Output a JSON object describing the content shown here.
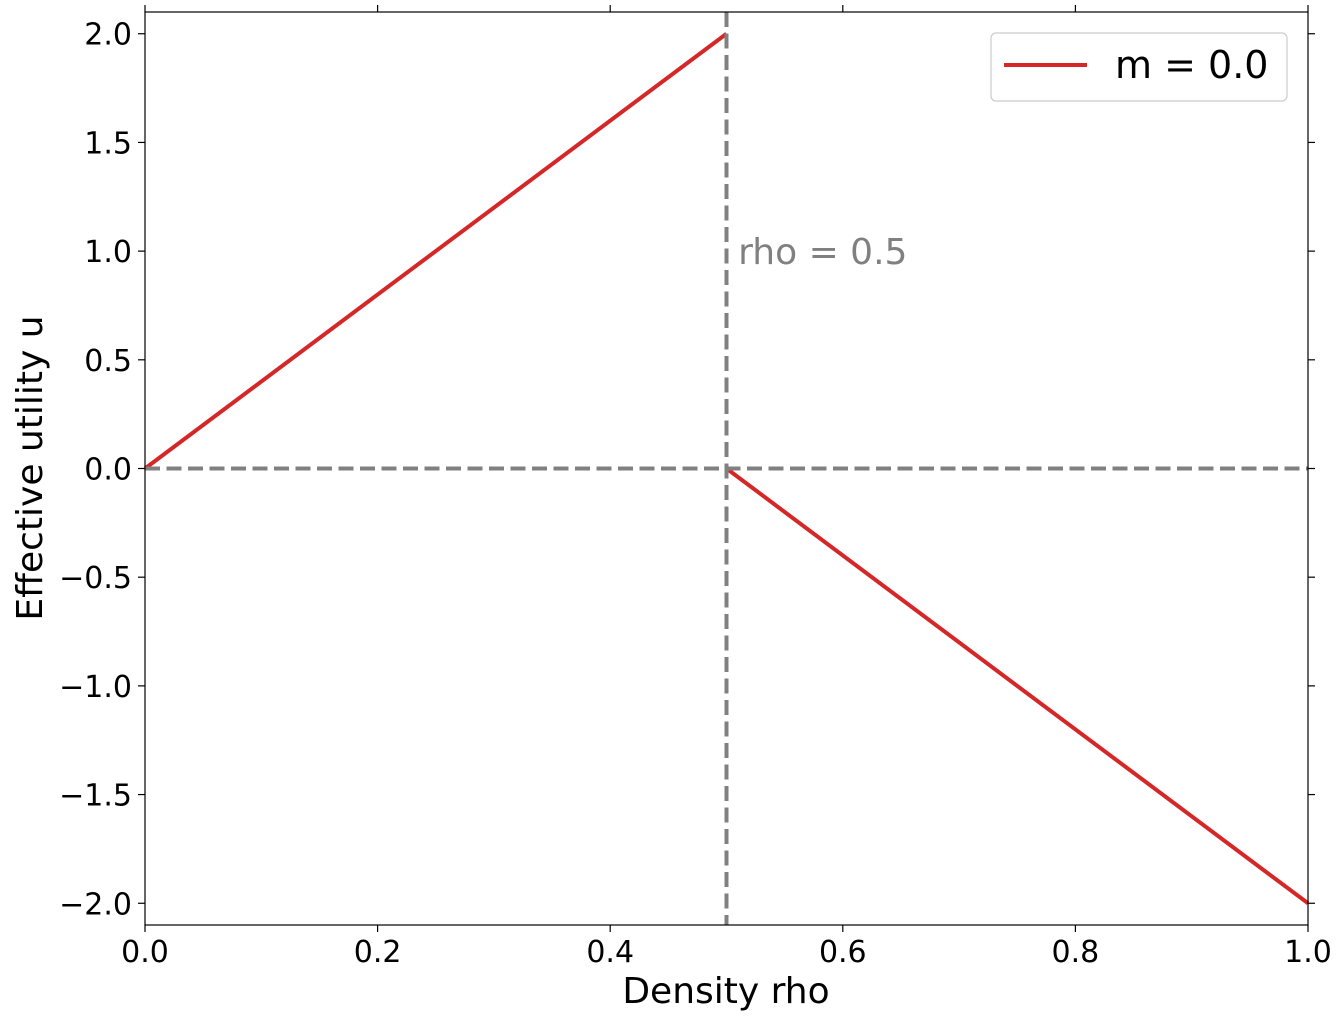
{
  "chart_data": {
    "type": "line",
    "xlabel": "Density rho",
    "ylabel": "Effective utility u",
    "xlim": [
      0.0,
      1.0
    ],
    "ylim": [
      -2.1,
      2.1
    ],
    "xticks": [
      0.0,
      0.2,
      0.4,
      0.6,
      0.8,
      1.0
    ],
    "xtick_labels": [
      "0.0",
      "0.2",
      "0.4",
      "0.6",
      "0.8",
      "1.0"
    ],
    "yticks": [
      2.0,
      1.5,
      1.0,
      0.5,
      0.0,
      -0.5,
      -1.0,
      -1.5,
      -2.0
    ],
    "ytick_labels": [
      "2.0",
      "1.5",
      "1.0",
      "0.5",
      "0.0",
      "−0.5",
      "−1.0",
      "−1.5",
      "−2.0"
    ],
    "grid": false,
    "legend_position": "top-right",
    "series": [
      {
        "name": "m = 0.0",
        "color": "#d62728",
        "segments": [
          {
            "x": [
              0.0,
              0.5
            ],
            "y": [
              0.0,
              2.0
            ]
          },
          {
            "x": [
              0.5,
              1.0
            ],
            "y": [
              0.0,
              -2.0
            ]
          }
        ]
      }
    ],
    "reference_lines": [
      {
        "orientation": "vertical",
        "value": 0.5,
        "color": "#808080",
        "style": "dashed"
      },
      {
        "orientation": "horizontal",
        "value": 0.0,
        "color": "#808080",
        "style": "dashed"
      }
    ],
    "annotations": [
      {
        "text": "rho = 0.5",
        "x": 0.51,
        "y": 1.0,
        "color": "#808080"
      }
    ]
  }
}
